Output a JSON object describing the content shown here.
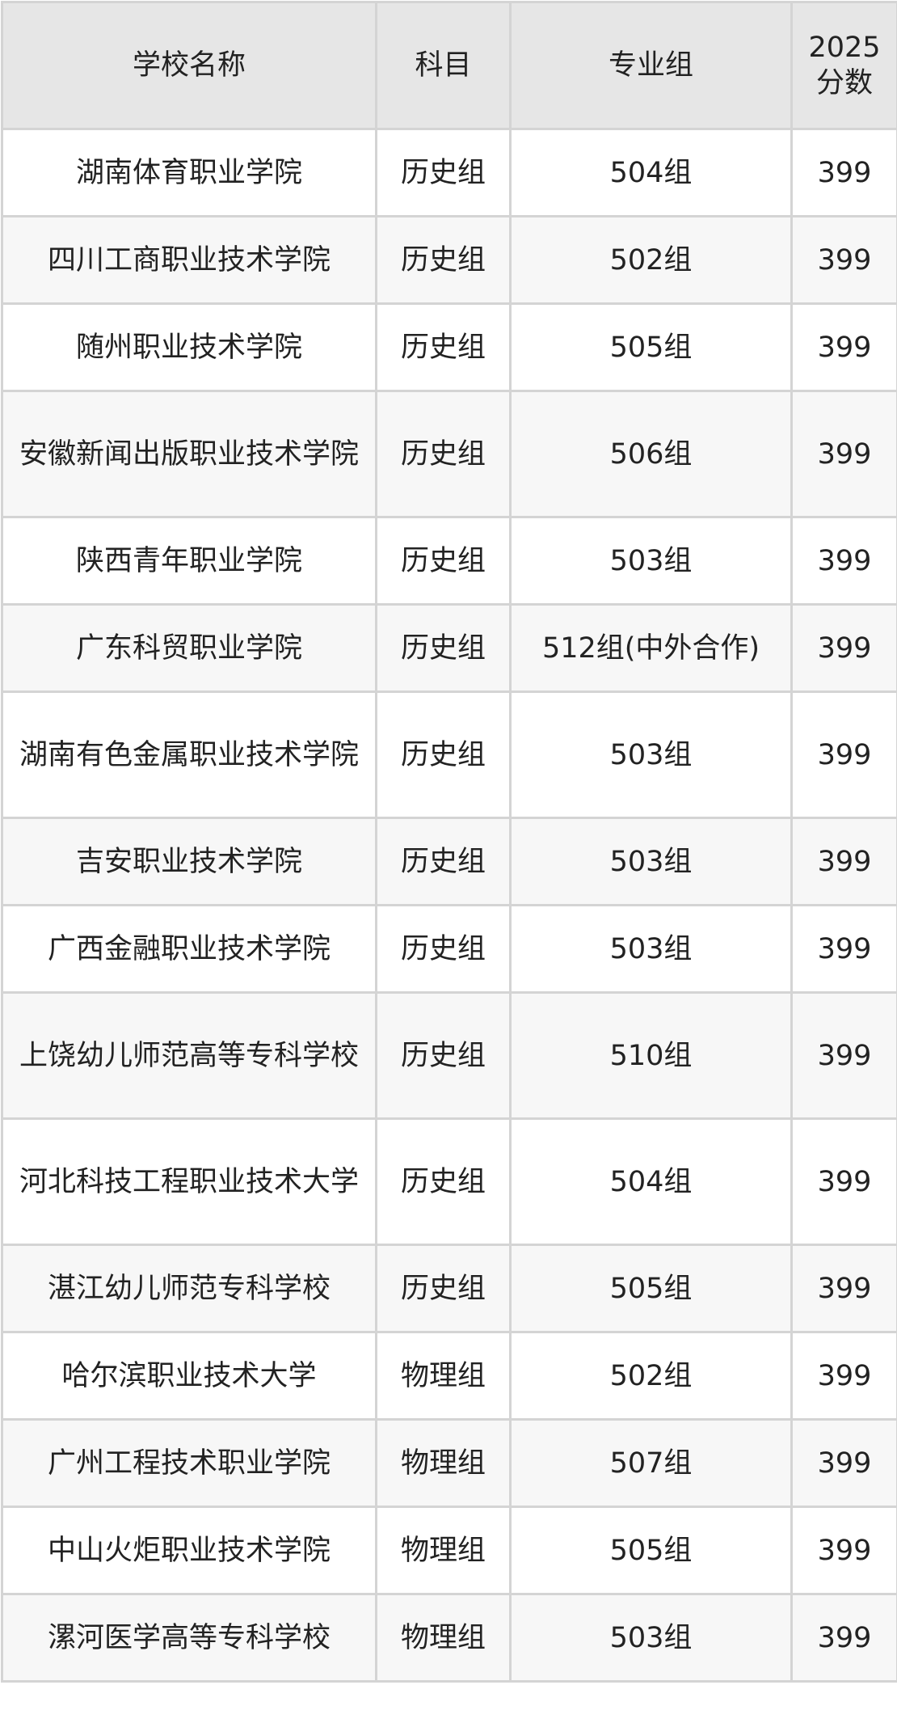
{
  "headers": [
    "学校名称",
    "科目",
    "专业组",
    "2025分数"
  ],
  "rows": [
    [
      "湖南体育职业学院",
      "历史组",
      "504组",
      "399"
    ],
    [
      "四川工商职业技术学院",
      "历史组",
      "502组",
      "399"
    ],
    [
      "随州职业技术学院",
      "历史组",
      "505组",
      "399"
    ],
    [
      "安徽新闻出版职业技术学院",
      "历史组",
      "506组",
      "399"
    ],
    [
      "陕西青年职业学院",
      "历史组",
      "503组",
      "399"
    ],
    [
      "广东科贸职业学院",
      "历史组",
      "512组(中外合作)",
      "399"
    ],
    [
      "湖南有色金属职业技术学院",
      "历史组",
      "503组",
      "399"
    ],
    [
      "吉安职业技术学院",
      "历史组",
      "503组",
      "399"
    ],
    [
      "广西金融职业技术学院",
      "历史组",
      "503组",
      "399"
    ],
    [
      "上饶幼儿师范高等专科学校",
      "历史组",
      "510组",
      "399"
    ],
    [
      "河北科技工程职业技术大学",
      "历史组",
      "504组",
      "399"
    ],
    [
      "湛江幼儿师范专科学校",
      "历史组",
      "505组",
      "399"
    ],
    [
      "哈尔滨职业技术大学",
      "物理组",
      "502组",
      "399"
    ],
    [
      "广州工程技术职业学院",
      "物理组",
      "507组",
      "399"
    ],
    [
      "中山火炬职业技术学院",
      "物理组",
      "505组",
      "399"
    ],
    [
      "漯河医学高等专科学校",
      "物理组",
      "503组",
      "399"
    ]
  ]
}
